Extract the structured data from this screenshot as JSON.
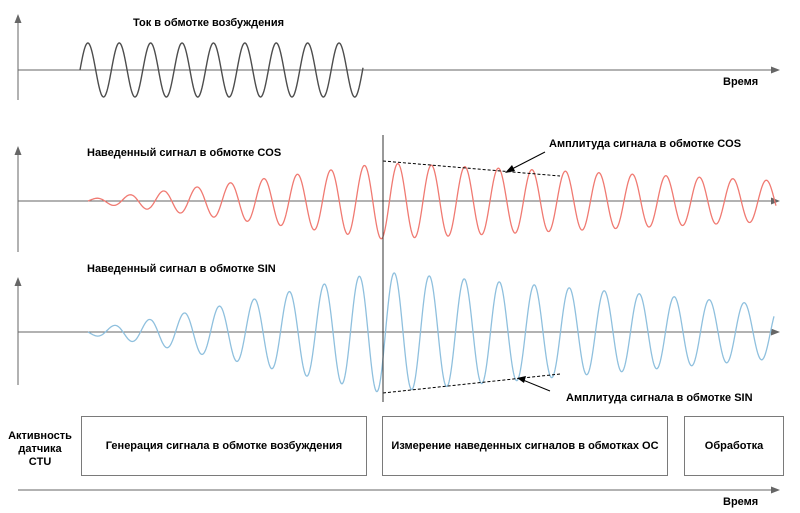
{
  "excitation": {
    "title": "Ток в обмотке возбуждения",
    "time_label": "Время",
    "wave_color": "#4d4d4d"
  },
  "cos": {
    "title": "Наведенный сигнал в обмотке  COS",
    "amplitude_label": "Амплитуда сигнала в обмотке COS",
    "wave_color": "#f07a72"
  },
  "sin": {
    "title": "Наведенный сигнал в обмотке  SIN",
    "amplitude_label": "Амплитуда сигнала в обмотке SIN",
    "wave_color": "#8fc0de"
  },
  "activity": {
    "label_lines": [
      "Активность",
      "датчика",
      "CTU"
    ],
    "phases": [
      "Генерация сигнала в обмотке возбуждения",
      "Измерение наведенных сигналов в обмотках ОС",
      "Обработка"
    ],
    "time_label": "Время"
  }
}
